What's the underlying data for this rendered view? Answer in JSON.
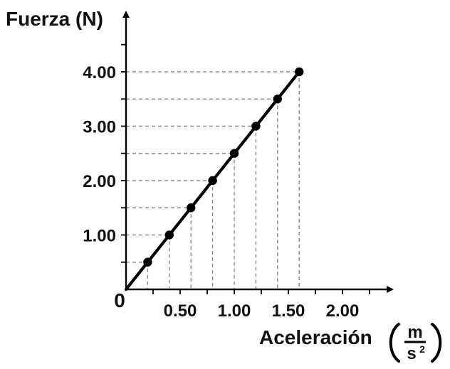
{
  "chart_data": {
    "type": "scatter",
    "title": "",
    "ylabel": "Fuerza (N)",
    "xlabel": "Aceleración",
    "xlabel_unit": {
      "numerator": "m",
      "denominator_base": "s",
      "denominator_exponent": "2"
    },
    "origin_label": "0",
    "x_ticks": [
      "0.50",
      "1.00",
      "1.50",
      "2.00"
    ],
    "y_ticks": [
      "1.00",
      "2.00",
      "3.00",
      "4.00"
    ],
    "xlim": [
      0,
      2.2
    ],
    "ylim": [
      0,
      4.4
    ],
    "grid": false,
    "guide_lines": true,
    "fit_line": true,
    "series": [
      {
        "x": [
          0.2,
          0.4,
          0.6,
          0.8,
          1.0,
          1.2,
          1.4,
          1.6
        ],
        "y": [
          0.5,
          1.0,
          1.5,
          2.0,
          2.5,
          3.0,
          3.5,
          4.0
        ]
      }
    ],
    "colors": {
      "line": "#000000",
      "guide": "#8a8a8a"
    }
  }
}
